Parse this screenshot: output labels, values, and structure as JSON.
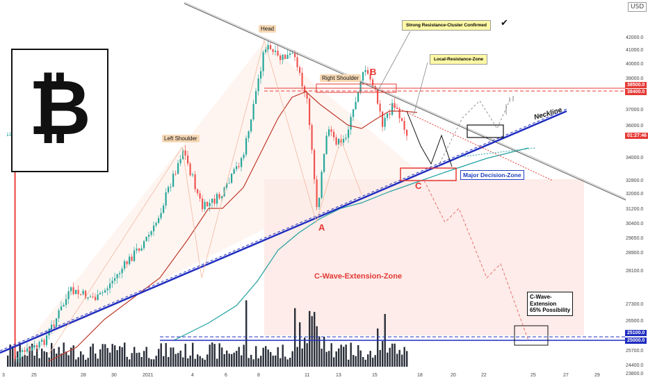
{
  "currency": "USD",
  "logo": {
    "symbol": "₿",
    "icon": "bitcoin-logo-icon"
  },
  "annotations": {
    "head": "Head",
    "left_shoulder": "Left Shoulder",
    "right_shoulder": "Right Shoulder",
    "neckline": "Neckline",
    "label_a": "A",
    "label_b": "B",
    "label_c": "C",
    "strong_resistance": "Strong Resistance-Cluster Confirmed",
    "local_resistance": "Local-Resistance-Zone",
    "major_decision": "Major Decision-Zone",
    "c_wave_zone": "C-Wave-Extension-Zone",
    "c_wave_box": "C-Wave-\nExtension\n65% Possibility",
    "checkmark": "✔"
  },
  "y_axis": {
    "ticks": [
      "42000.0",
      "41000.0",
      "40000.0",
      "39000.0",
      "37000.0",
      "36000.0",
      "34000.0",
      "32800.0",
      "32000.0",
      "31200.0",
      "30400.0",
      "29650.0",
      "28900.0",
      "28100.0",
      "27300.0",
      "26500.0",
      "25700.0",
      "24400.0",
      "23800.0"
    ],
    "tags": [
      {
        "label": "38500.0",
        "color": "#e53935"
      },
      {
        "label": "38400.0",
        "color": "#e53935"
      },
      {
        "label": "01:27:46",
        "color": "#e53935"
      },
      {
        "label": "25100.0",
        "color": "#1f2dbf"
      },
      {
        "label": "25000.0",
        "color": "#1f2dbf"
      }
    ]
  },
  "x_axis": {
    "ticks": [
      "3",
      "25",
      "28",
      "30",
      "2021",
      "4",
      "6",
      "8",
      "11",
      "13",
      "15",
      "18",
      "20",
      "22",
      "25",
      "27",
      "29"
    ]
  },
  "chart_data": {
    "type": "candlestick",
    "title": "",
    "ylim": [
      23800,
      42600
    ],
    "x": [
      "3",
      "25",
      "28",
      "30",
      "2021",
      "4",
      "6",
      "8",
      "11",
      "13",
      "15",
      "18",
      "20",
      "22",
      "25",
      "27",
      "29"
    ],
    "levels": [
      {
        "name": "resistance",
        "values": [
          38500,
          38400
        ]
      },
      {
        "name": "support",
        "values": [
          25100,
          25000
        ]
      }
    ],
    "key_points": [
      {
        "label": "Left Shoulder",
        "y": 34900
      },
      {
        "label": "Head",
        "y": 41900
      },
      {
        "label": "Right Shoulder",
        "y": 38300
      },
      {
        "label": "A",
        "y": 30300
      },
      {
        "label": "B",
        "y": 39800
      },
      {
        "label": "C",
        "y": 33000
      }
    ],
    "grid": false,
    "colors": {
      "up": "#26a69a",
      "down": "#ef5350",
      "volume": "#2a2e39",
      "ma_fast": "#c0392b",
      "ma_slow": "#20a0a0",
      "trend": "#1f2dbf"
    }
  }
}
